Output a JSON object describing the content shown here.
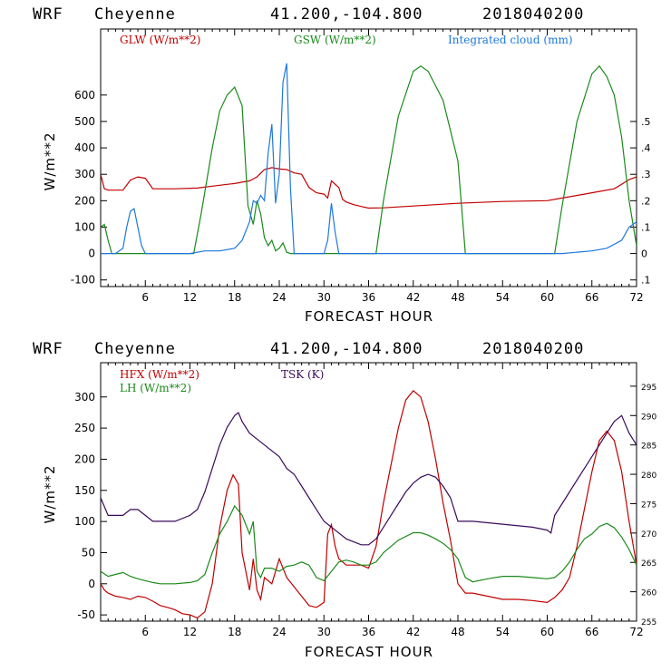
{
  "header": {
    "model": "WRF",
    "station": "Cheyenne",
    "coords": "41.200,-104.800",
    "init": "2018040200"
  },
  "chart_data": [
    {
      "type": "line",
      "xlabel": "FORECAST HOUR",
      "ylabel": "W/m**2",
      "xlim": [
        0,
        72
      ],
      "ylim": [
        -125,
        850
      ],
      "x_ticks": [
        6,
        12,
        18,
        24,
        30,
        36,
        42,
        48,
        54,
        60,
        66,
        72
      ],
      "y_ticks": [
        -100,
        0,
        100,
        200,
        300,
        400,
        500,
        600
      ],
      "y2_label": "Integrated cloud (mm)",
      "y2lim": [
        -0.125,
        0.85
      ],
      "y2_ticks": [
        -0.1,
        0,
        0.1,
        0.2,
        0.3,
        0.4,
        0.5
      ],
      "y2_tick_labels": [
        ".1",
        "0",
        ".1",
        ".2",
        ".3",
        ".4",
        ".5"
      ],
      "series": [
        {
          "name": "GLW (W/m**2)",
          "color": "#c00000",
          "axis": "left",
          "x": [
            0,
            0.5,
            1,
            3,
            4,
            5,
            6,
            7,
            10,
            13,
            15,
            17,
            18,
            19,
            20,
            21,
            22,
            23,
            24,
            25,
            26,
            27,
            28,
            29,
            30,
            30.5,
            31,
            32,
            32.5,
            33,
            34,
            35,
            36,
            38,
            42,
            48,
            54,
            60,
            62,
            65,
            67,
            69,
            70,
            71,
            72
          ],
          "values": [
            300,
            245,
            240,
            240,
            278,
            290,
            285,
            245,
            245,
            248,
            255,
            262,
            265,
            270,
            275,
            290,
            318,
            325,
            320,
            318,
            305,
            300,
            250,
            230,
            225,
            210,
            275,
            250,
            205,
            195,
            185,
            178,
            172,
            173,
            180,
            190,
            197,
            200,
            210,
            225,
            235,
            245,
            262,
            280,
            290
          ]
        },
        {
          "name": "GSW (W/m**2)",
          "color": "#1a8a1a",
          "axis": "left",
          "x": [
            0,
            0.5,
            1,
            1.5,
            10,
            12.5,
            13.5,
            15,
            16,
            17,
            18,
            19,
            19.8,
            20.5,
            21,
            21.5,
            22,
            22.5,
            23,
            23.5,
            24,
            24.5,
            25,
            25.5,
            26,
            37,
            38,
            40,
            42,
            43,
            44,
            46,
            48,
            49,
            61,
            62,
            64,
            66,
            67,
            68,
            69,
            70,
            71,
            72
          ],
          "values": [
            100,
            110,
            50,
            0,
            0,
            0,
            150,
            400,
            540,
            600,
            630,
            560,
            180,
            110,
            200,
            150,
            60,
            30,
            50,
            10,
            20,
            40,
            5,
            0,
            0,
            0,
            200,
            520,
            690,
            710,
            690,
            580,
            350,
            0,
            0,
            180,
            500,
            680,
            710,
            670,
            600,
            440,
            200,
            30
          ]
        },
        {
          "name": "Integrated cloud (mm)",
          "color": "#1e78dc",
          "axis": "right",
          "x": [
            0,
            2,
            3,
            3.5,
            4,
            4.5,
            5,
            5.5,
            6,
            6.5,
            12,
            14,
            16,
            18,
            19,
            20,
            20.5,
            21,
            21.5,
            22,
            22.5,
            23,
            23.5,
            24,
            24.5,
            25,
            25.5,
            26,
            30,
            30.5,
            31,
            31.5,
            32,
            62,
            66,
            68,
            70,
            71,
            72
          ],
          "values": [
            0,
            0,
            0.02,
            0.1,
            0.16,
            0.17,
            0.1,
            0.03,
            0,
            0,
            0,
            0.01,
            0.01,
            0.02,
            0.05,
            0.12,
            0.2,
            0.19,
            0.22,
            0.2,
            0.38,
            0.49,
            0.19,
            0.3,
            0.65,
            0.72,
            0.25,
            0,
            0,
            0.05,
            0.19,
            0.08,
            0,
            0,
            0.01,
            0.02,
            0.05,
            0.1,
            0.12
          ]
        }
      ]
    },
    {
      "type": "line",
      "xlabel": "FORECAST HOUR",
      "ylabel": "W/m**2",
      "xlim": [
        0,
        72
      ],
      "ylim": [
        -60,
        355
      ],
      "x_ticks": [
        6,
        12,
        18,
        24,
        30,
        36,
        42,
        48,
        54,
        60,
        66,
        72
      ],
      "y_ticks": [
        -50,
        0,
        50,
        100,
        150,
        200,
        250,
        300
      ],
      "y2_label": "TSK (K)",
      "y2lim": [
        255,
        299
      ],
      "y2_ticks": [
        255,
        260,
        265,
        270,
        275,
        280,
        285,
        290,
        295
      ],
      "series": [
        {
          "name": "HFX (W/m**2)",
          "color": "#c00000",
          "axis": "left",
          "x": [
            0,
            0.5,
            1,
            2,
            3,
            4,
            5,
            6,
            7,
            8,
            9,
            10,
            11,
            12,
            13,
            14,
            15,
            16,
            17,
            17.8,
            18.5,
            19,
            20,
            20.5,
            21,
            21.5,
            22,
            23,
            24,
            25,
            26,
            27,
            28,
            29,
            30,
            30.5,
            31,
            31.5,
            32,
            33,
            35,
            36,
            37,
            38,
            39,
            40,
            41,
            42,
            43,
            44,
            45,
            46,
            47,
            48,
            49,
            50,
            52,
            54,
            56,
            58,
            60,
            61,
            62,
            63,
            64,
            65,
            66,
            67,
            68,
            69,
            70,
            71,
            72
          ],
          "values": [
            0,
            -10,
            -15,
            -20,
            -22,
            -25,
            -20,
            -22,
            -28,
            -35,
            -38,
            -42,
            -48,
            -50,
            -55,
            -45,
            0,
            90,
            150,
            175,
            160,
            50,
            -10,
            40,
            -10,
            -25,
            10,
            0,
            40,
            10,
            -5,
            -20,
            -35,
            -38,
            -30,
            80,
            95,
            60,
            40,
            30,
            30,
            25,
            60,
            130,
            190,
            250,
            295,
            310,
            300,
            260,
            200,
            130,
            70,
            0,
            -15,
            -15,
            -20,
            -25,
            -25,
            -27,
            -30,
            -22,
            -10,
            10,
            60,
            120,
            180,
            230,
            245,
            230,
            180,
            100,
            30
          ]
        },
        {
          "name": "LH (W/m**2)",
          "color": "#1a8a1a",
          "axis": "left",
          "x": [
            0,
            1,
            2,
            3,
            4,
            5,
            6,
            7,
            8,
            10,
            12,
            13,
            14,
            15,
            16,
            17,
            18,
            19,
            20,
            20.5,
            21,
            21.5,
            22,
            23,
            24,
            25,
            26,
            27,
            28,
            29,
            30,
            31,
            32,
            33,
            34,
            35,
            36,
            37,
            38,
            40,
            42,
            43,
            44,
            45,
            46,
            47,
            48,
            49,
            50,
            52,
            54,
            56,
            58,
            60,
            61,
            62,
            63,
            64,
            65,
            66,
            67,
            68,
            69,
            70,
            71,
            72
          ],
          "values": [
            20,
            12,
            15,
            18,
            12,
            8,
            5,
            2,
            0,
            0,
            2,
            5,
            15,
            50,
            80,
            100,
            125,
            110,
            80,
            100,
            20,
            10,
            25,
            25,
            20,
            28,
            30,
            35,
            30,
            10,
            5,
            20,
            35,
            38,
            35,
            30,
            30,
            35,
            50,
            70,
            82,
            82,
            78,
            72,
            65,
            55,
            40,
            10,
            3,
            8,
            12,
            12,
            10,
            8,
            10,
            20,
            35,
            55,
            72,
            80,
            92,
            97,
            90,
            75,
            55,
            30
          ]
        },
        {
          "name": "TSK (K)",
          "color": "#3a0a5a",
          "axis": "right",
          "x": [
            0,
            1,
            2,
            3,
            4,
            5,
            6,
            7,
            8,
            10,
            12,
            13,
            14,
            15,
            16,
            17,
            18,
            18.5,
            19,
            20,
            21,
            22,
            23,
            24,
            25,
            26,
            27,
            28,
            29,
            30,
            31,
            32,
            33,
            34,
            35,
            36,
            37,
            38,
            39,
            40,
            41,
            42,
            43,
            44,
            45,
            46,
            47,
            47.5,
            48,
            50,
            54,
            58,
            60,
            60.5,
            61,
            62,
            63,
            64,
            65,
            66,
            67,
            68,
            69,
            70,
            71,
            72
          ],
          "values": [
            276,
            273,
            273,
            273,
            274,
            274,
            273,
            272,
            272,
            272,
            273,
            274,
            277,
            281,
            285,
            288,
            290,
            290.5,
            289,
            287,
            286,
            285,
            284,
            283,
            281,
            280,
            278,
            276,
            274,
            272,
            271,
            270,
            269,
            268.5,
            268,
            268,
            269,
            271,
            273,
            275,
            277,
            278.5,
            279.5,
            280,
            279.5,
            278,
            276,
            274,
            272,
            272,
            271.5,
            271,
            270.5,
            270,
            273,
            275,
            277,
            279,
            281,
            283,
            285,
            287,
            289,
            290,
            287,
            285
          ]
        }
      ]
    }
  ],
  "text": {
    "top_legend": [
      "GLW (W/m**2)",
      "GSW (W/m**2)",
      "Integrated cloud (mm)"
    ],
    "bottom_legend": [
      "HFX (W/m**2)",
      "LH (W/m**2)",
      "TSK (K)"
    ]
  }
}
